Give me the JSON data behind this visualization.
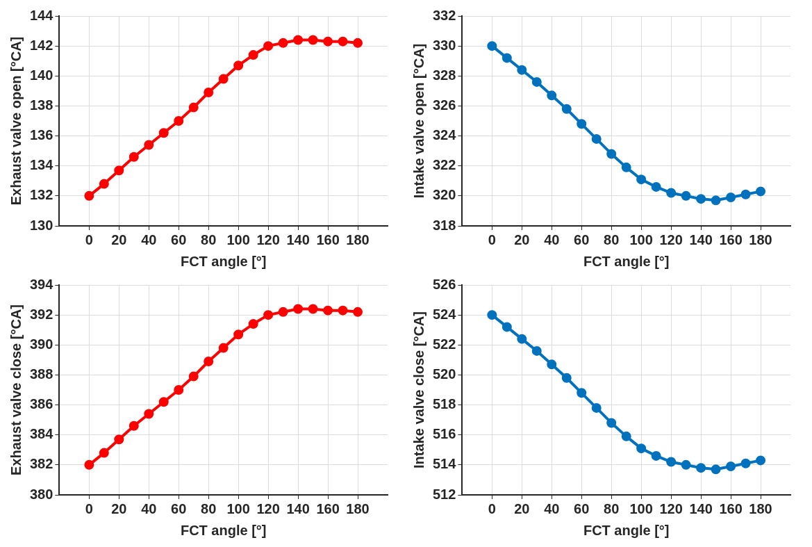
{
  "chart_data": [
    {
      "type": "line",
      "xlabel": "FCT angle [°]",
      "ylabel": "Exhaust valve open [°CA]",
      "x": [
        0,
        10,
        20,
        30,
        40,
        50,
        60,
        70,
        80,
        90,
        100,
        110,
        120,
        130,
        140,
        150,
        160,
        170,
        180
      ],
      "series": [
        {
          "color": "#ff0000",
          "values": [
            132.0,
            132.8,
            133.7,
            134.6,
            135.4,
            136.2,
            137.0,
            137.9,
            138.9,
            139.8,
            140.7,
            141.4,
            142.0,
            142.2,
            142.4,
            142.4,
            142.3,
            142.3,
            142.2
          ]
        }
      ],
      "xlim": [
        -20,
        200
      ],
      "xticks": [
        0,
        20,
        40,
        60,
        80,
        100,
        120,
        140,
        160,
        180
      ],
      "ylim": [
        130,
        144
      ],
      "yticks": [
        130,
        132,
        134,
        136,
        138,
        140,
        142,
        144
      ],
      "grid": true,
      "marker": "circle",
      "line_style": "solid"
    },
    {
      "type": "line",
      "xlabel": "FCT angle [°]",
      "ylabel": "Intake valve open [°CA]",
      "x": [
        0,
        10,
        20,
        30,
        40,
        50,
        60,
        70,
        80,
        90,
        100,
        110,
        120,
        130,
        140,
        150,
        160,
        170,
        180
      ],
      "series": [
        {
          "color": "#0072bd",
          "values": [
            330.0,
            329.2,
            328.4,
            327.6,
            326.7,
            325.8,
            324.8,
            323.8,
            322.8,
            321.9,
            321.1,
            320.6,
            320.2,
            320.0,
            319.8,
            319.7,
            319.9,
            320.1,
            320.3
          ]
        }
      ],
      "xlim": [
        -20,
        200
      ],
      "xticks": [
        0,
        20,
        40,
        60,
        80,
        100,
        120,
        140,
        160,
        180
      ],
      "ylim": [
        318,
        332
      ],
      "yticks": [
        318,
        320,
        322,
        324,
        326,
        328,
        330,
        332
      ],
      "grid": true,
      "marker": "circle",
      "line_style": "solid"
    },
    {
      "type": "line",
      "xlabel": "FCT angle [°]",
      "ylabel": "Exhaust valve close [°CA]",
      "x": [
        0,
        10,
        20,
        30,
        40,
        50,
        60,
        70,
        80,
        90,
        100,
        110,
        120,
        130,
        140,
        150,
        160,
        170,
        180
      ],
      "series": [
        {
          "color": "#ff0000",
          "values": [
            382.0,
            382.8,
            383.7,
            384.6,
            385.4,
            386.2,
            387.0,
            387.9,
            388.9,
            389.8,
            390.7,
            391.4,
            392.0,
            392.2,
            392.4,
            392.4,
            392.3,
            392.3,
            392.2
          ]
        }
      ],
      "xlim": [
        -20,
        200
      ],
      "xticks": [
        0,
        20,
        40,
        60,
        80,
        100,
        120,
        140,
        160,
        180
      ],
      "ylim": [
        380,
        394
      ],
      "yticks": [
        380,
        382,
        384,
        386,
        388,
        390,
        392,
        394
      ],
      "grid": true,
      "marker": "circle",
      "line_style": "solid"
    },
    {
      "type": "line",
      "xlabel": "FCT angle [°]",
      "ylabel": "Intake valve close [°CA]",
      "x": [
        0,
        10,
        20,
        30,
        40,
        50,
        60,
        70,
        80,
        90,
        100,
        110,
        120,
        130,
        140,
        150,
        160,
        170,
        180
      ],
      "series": [
        {
          "color": "#0072bd",
          "values": [
            524.0,
            523.2,
            522.4,
            521.6,
            520.7,
            519.8,
            518.8,
            517.8,
            516.8,
            515.9,
            515.1,
            514.6,
            514.2,
            514.0,
            513.8,
            513.7,
            513.9,
            514.1,
            514.3
          ]
        }
      ],
      "xlim": [
        -20,
        200
      ],
      "xticks": [
        0,
        20,
        40,
        60,
        80,
        100,
        120,
        140,
        160,
        180
      ],
      "ylim": [
        512,
        526
      ],
      "yticks": [
        512,
        514,
        516,
        518,
        520,
        522,
        524,
        526
      ],
      "grid": true,
      "marker": "circle",
      "line_style": "solid"
    }
  ]
}
